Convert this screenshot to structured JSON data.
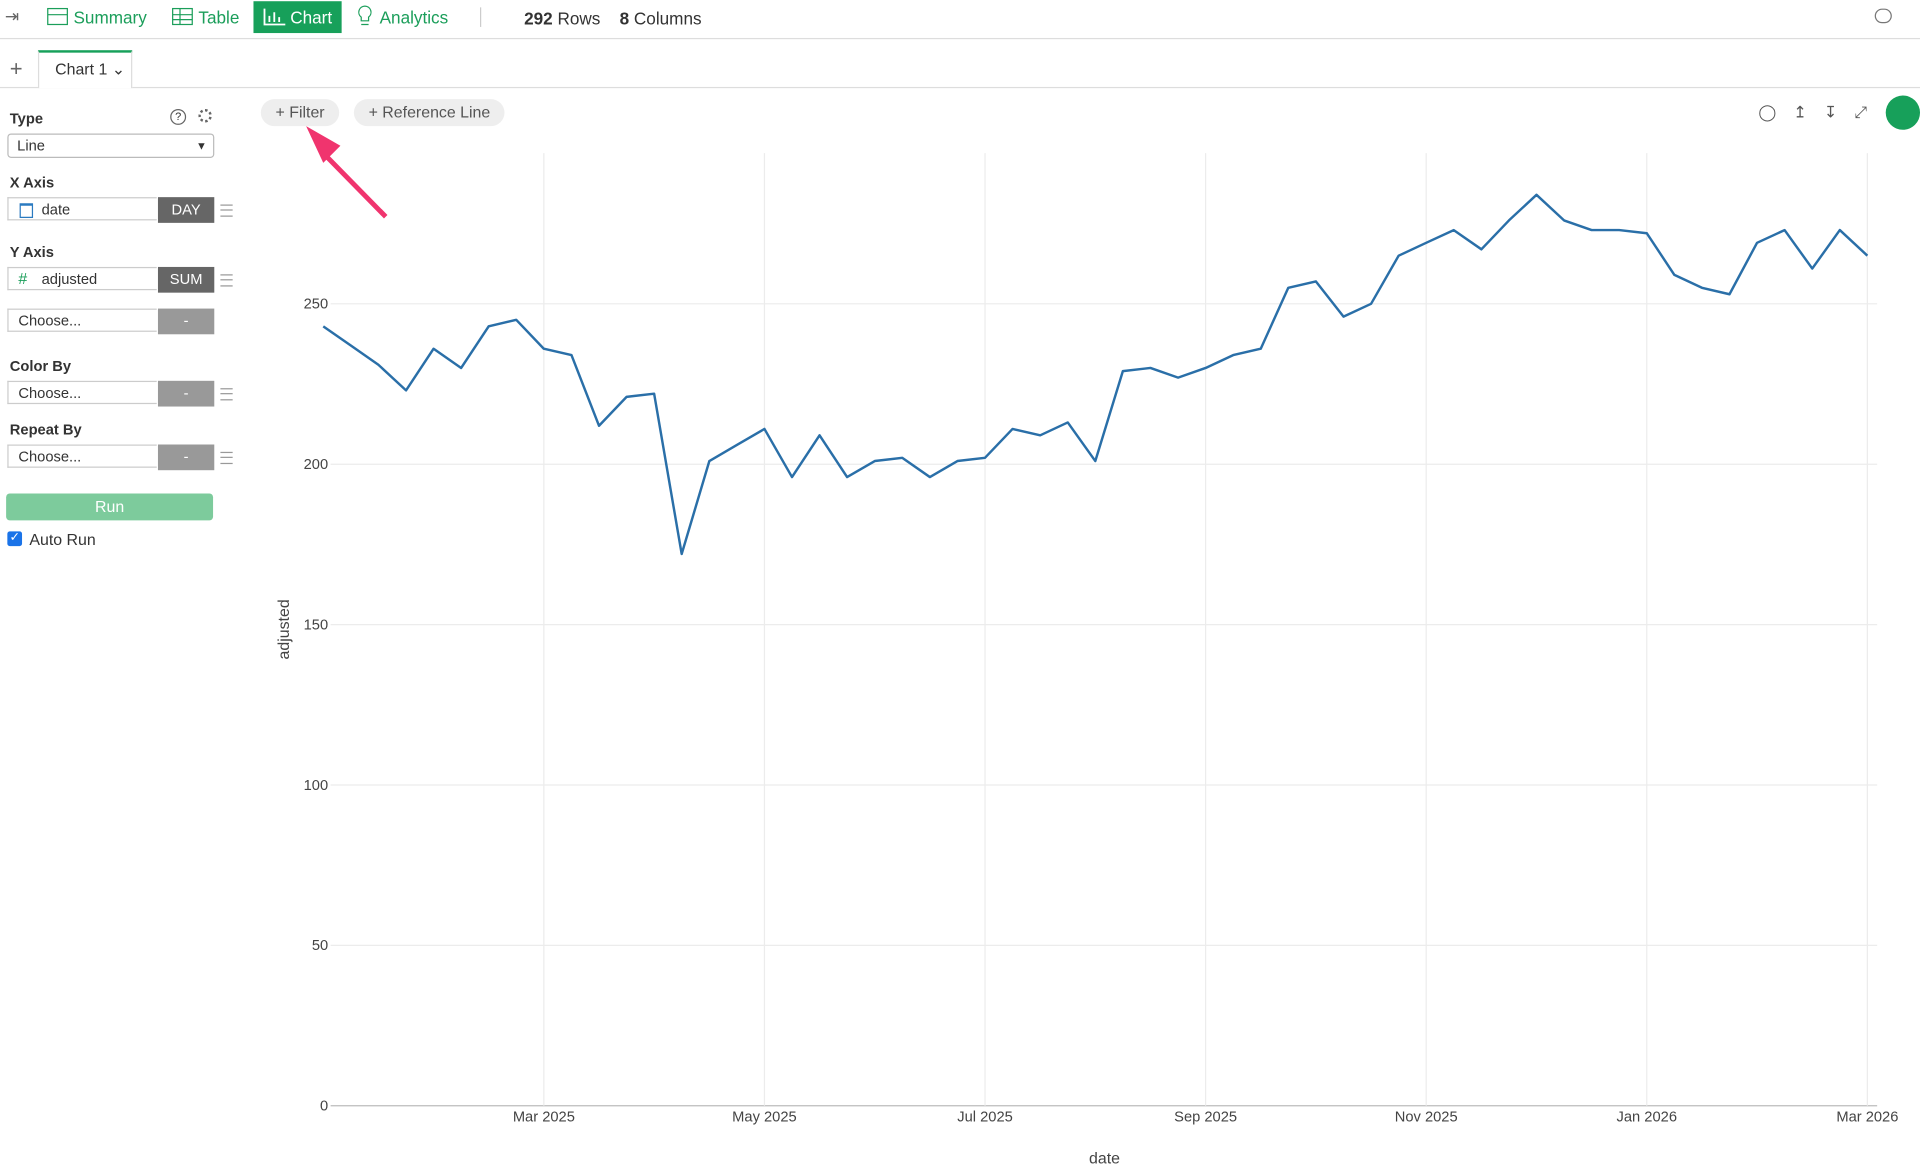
{
  "toolbar": {
    "tabs": [
      "Summary",
      "Table",
      "Chart",
      "Analytics"
    ],
    "rows_count": "292",
    "rows_label": "Rows",
    "columns_count": "8",
    "columns_label": "Columns"
  },
  "chart_tab": "Chart 1",
  "sidebar": {
    "type_label": "Type",
    "type_value": "Line",
    "x_axis_label": "X Axis",
    "x_field": "date",
    "x_agg": "DAY",
    "y_axis_label": "Y Axis",
    "y_field": "adjusted",
    "y_agg": "SUM",
    "y2_field": "Choose...",
    "y2_agg": "-",
    "color_label": "Color By",
    "color_field": "Choose...",
    "color_agg": "-",
    "repeat_label": "Repeat By",
    "repeat_field": "Choose...",
    "repeat_agg": "-",
    "run": "Run",
    "auto_run": "Auto Run"
  },
  "chart_buttons": [
    "+ Filter",
    "+ Reference Line"
  ],
  "chart_data": {
    "type": "line",
    "x_label": "date",
    "y_label": "adjusted",
    "x": [
      "2025-01",
      "2025-01",
      "2025-01",
      "2025-01",
      "2025-02",
      "2025-02",
      "2025-02",
      "2025-02",
      "2025-03",
      "2025-03",
      "2025-03",
      "2025-03",
      "2025-04",
      "2025-04",
      "2025-04",
      "2025-04",
      "2025-05",
      "2025-05",
      "2025-05",
      "2025-05",
      "2025-06",
      "2025-06",
      "2025-06",
      "2025-06",
      "2025-07",
      "2025-07",
      "2025-07",
      "2025-07",
      "2025-08",
      "2025-08",
      "2025-08",
      "2025-08",
      "2025-09",
      "2025-09",
      "2025-09",
      "2025-09",
      "2025-10",
      "2025-10",
      "2025-10",
      "2025-10",
      "2025-11",
      "2025-11",
      "2025-11",
      "2025-11",
      "2025-12",
      "2025-12",
      "2025-12",
      "2025-12",
      "2026-01",
      "2026-01",
      "2026-01",
      "2026-01",
      "2026-02",
      "2026-02",
      "2026-02",
      "2026-02",
      "2026-03"
    ],
    "series": [
      {
        "name": "adjusted",
        "color": "#2a6fa8",
        "values": [
          243,
          237,
          231,
          223,
          236,
          230,
          243,
          245,
          236,
          234,
          212,
          221,
          222,
          172,
          201,
          206,
          211,
          196,
          209,
          196,
          201,
          202,
          196,
          201,
          202,
          211,
          209,
          213,
          201,
          229,
          230,
          227,
          230,
          234,
          236,
          255,
          257,
          246,
          250,
          265,
          269,
          273,
          267,
          276,
          284,
          276,
          273,
          273,
          272,
          259,
          255,
          253,
          269,
          273,
          261,
          273,
          265
        ]
      }
    ],
    "xlim": [
      "2025-01",
      "2026-03"
    ],
    "xticks": [
      {
        "value": "2025-03",
        "label": "Mar 2025"
      },
      {
        "value": "2025-05",
        "label": "May 2025"
      },
      {
        "value": "2025-07",
        "label": "Jul 2025"
      },
      {
        "value": "2025-09",
        "label": "Sep 2025"
      },
      {
        "value": "2025-11",
        "label": "Nov 2025"
      },
      {
        "value": "2026-01",
        "label": "Jan 2026"
      },
      {
        "value": "2026-03",
        "label": "Mar 2026"
      }
    ],
    "ylim": [
      0,
      297
    ],
    "yticks": [
      0,
      50,
      100,
      150,
      200,
      250
    ],
    "grid": true
  }
}
